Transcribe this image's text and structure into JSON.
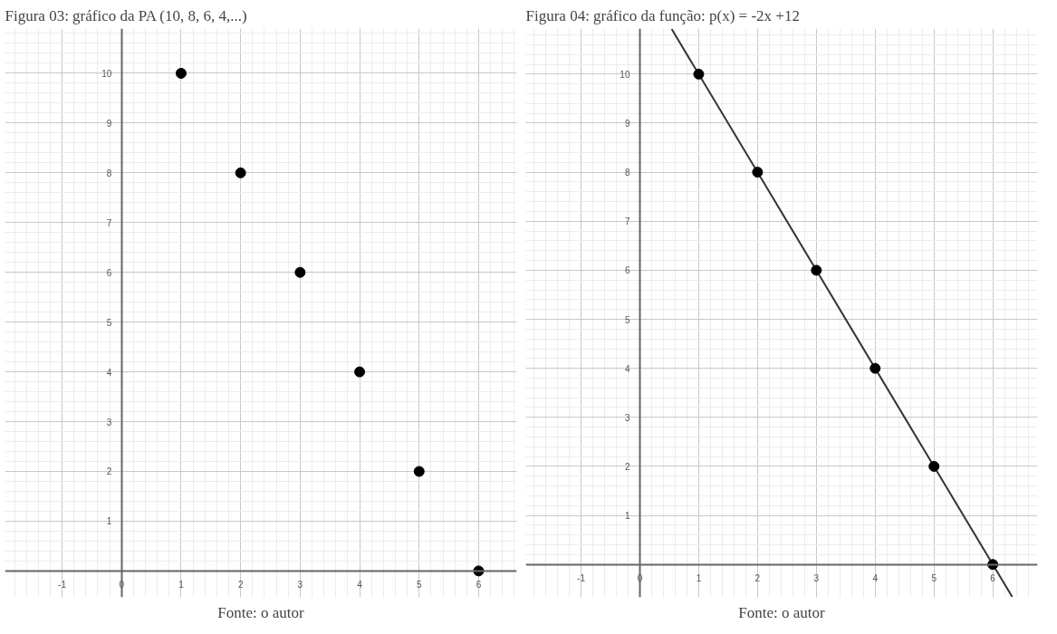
{
  "chart_data": [
    {
      "type": "scatter",
      "title": "Figura 03: gráfico da PA (10, 8, 6, 4,...)",
      "x": [
        1,
        2,
        3,
        4,
        5,
        6
      ],
      "series": [
        {
          "color": "#000000",
          "values": [
            10,
            8,
            6,
            4,
            2,
            0
          ]
        }
      ],
      "xlim": [
        -1.96,
        6.64
      ],
      "ylim": [
        -0.53,
        10.9
      ],
      "xticks": [
        -1,
        0,
        1,
        2,
        3,
        4,
        5,
        6
      ],
      "yticks": [
        1,
        2,
        3,
        4,
        5,
        6,
        7,
        8,
        9,
        10
      ],
      "grid": true,
      "marker": "circle",
      "annotations": [
        "Fonte: o autor"
      ]
    },
    {
      "type": "scatter",
      "title": "Figura 04: gráfico da função: p(x) = -2x +12",
      "x": [
        1,
        2,
        3,
        4,
        5,
        6
      ],
      "series": [
        {
          "type": "line",
          "color": "#333333",
          "x": [
            0.54,
            6.33
          ],
          "values": [
            10.92,
            -0.66
          ],
          "line_style": "solid",
          "marker": "none"
        },
        {
          "color": "#000000",
          "values": [
            10,
            8,
            6,
            4,
            2,
            0
          ]
        }
      ],
      "xlim": [
        -1.94,
        6.76
      ],
      "ylim": [
        -0.67,
        10.93
      ],
      "xticks": [
        -1,
        0,
        1,
        2,
        3,
        4,
        5,
        6
      ],
      "yticks": [
        1,
        2,
        3,
        4,
        5,
        6,
        7,
        8,
        9,
        10
      ],
      "grid": true,
      "marker": "circle",
      "annotations": [
        "Fonte: o autor"
      ]
    }
  ]
}
